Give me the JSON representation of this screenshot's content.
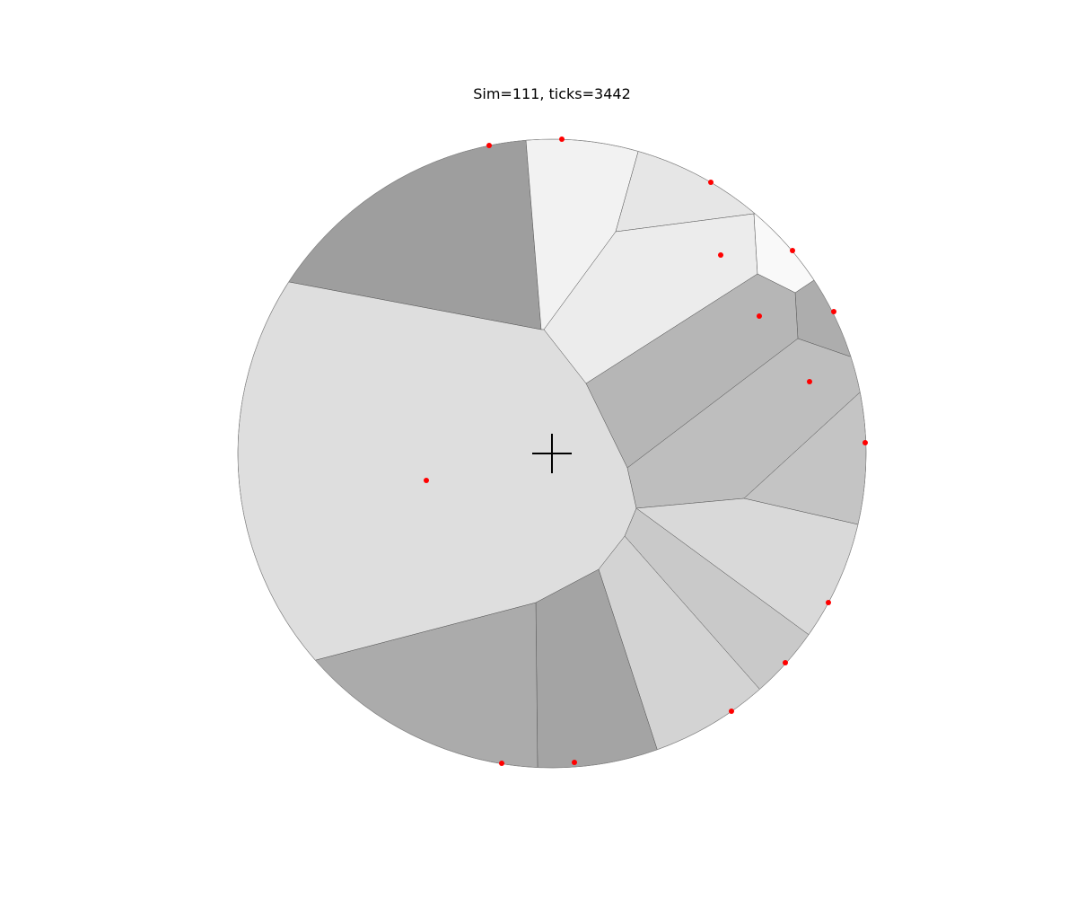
{
  "title": "Sim=111, ticks=3442",
  "colors": {
    "seed": "#ff0000",
    "marker": "#000000",
    "background": "#ffffff",
    "cell_stroke": "#555555"
  },
  "cells": [
    {
      "name": "cell-top-left",
      "fill": "#9e9e9e"
    },
    {
      "name": "cell-top",
      "fill": "#f2f2f2"
    },
    {
      "name": "cell-top-right-a",
      "fill": "#e6e6e6"
    },
    {
      "name": "cell-upper-right",
      "fill": "#ececec"
    },
    {
      "name": "cell-right-sliver",
      "fill": "#f9f9f9"
    },
    {
      "name": "cell-right-small",
      "fill": "#adadad"
    },
    {
      "name": "cell-right-middle",
      "fill": "#b6b6b6"
    },
    {
      "name": "cell-right-lower",
      "fill": "#bebebe"
    },
    {
      "name": "cell-far-right",
      "fill": "#c4c4c4"
    },
    {
      "name": "cell-lower-right",
      "fill": "#d9d9d9"
    },
    {
      "name": "cell-lower-right-b",
      "fill": "#c9c9c9"
    },
    {
      "name": "cell-bottom-right",
      "fill": "#d3d3d3"
    },
    {
      "name": "cell-bottom-center",
      "fill": "#a4a4a4"
    },
    {
      "name": "cell-bottom-left",
      "fill": "#ababab"
    },
    {
      "name": "cell-large-center",
      "fill": "#dedede"
    }
  ]
}
